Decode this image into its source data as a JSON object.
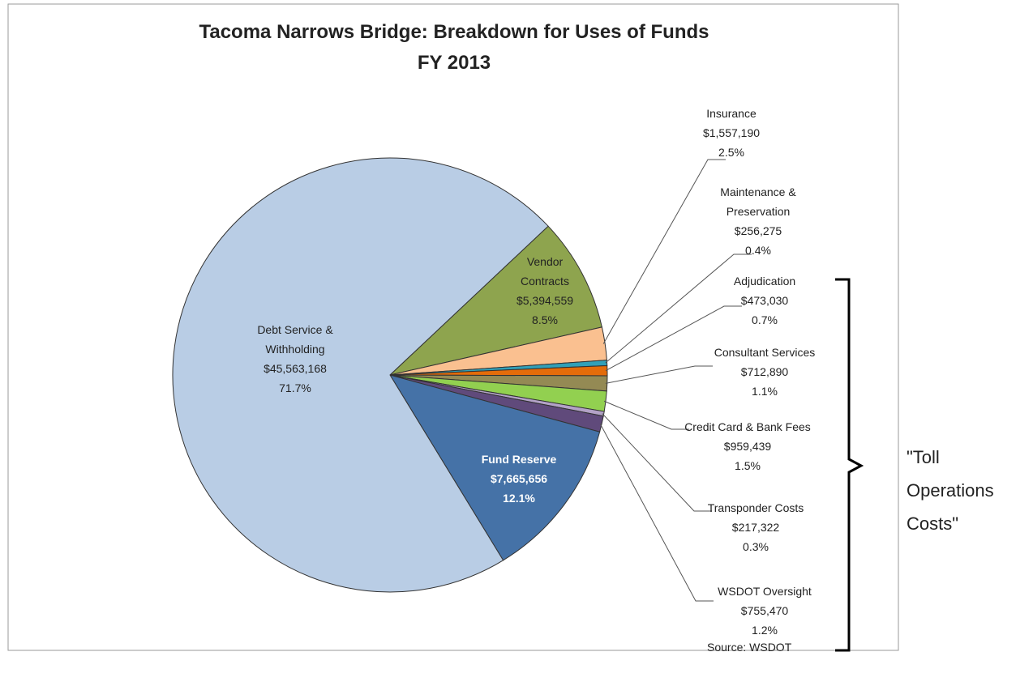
{
  "chart_data": {
    "type": "pie",
    "title": "Tacoma Narrows Bridge: Breakdown for Uses of Funds",
    "subtitle": "FY 2013",
    "categories": [
      "Vendor Contracts",
      "Insurance",
      "Maintenance & Preservation",
      "Adjudication",
      "Consultant Services",
      "Credit Card & Bank Fees",
      "Transponder Costs",
      "WSDOT Oversight",
      "Fund Reserve",
      "Debt Service & Withholding"
    ],
    "values": [
      5394559,
      1557190,
      256275,
      473030,
      712890,
      959439,
      217322,
      755470,
      7665656,
      45563168
    ],
    "value_labels": [
      "$5,394,559",
      "$1,557,190",
      "$256,275",
      "$473,030",
      "$712,890",
      "$959,439",
      "$217,322",
      "$755,470",
      "$7,665,656",
      "$45,563,168"
    ],
    "percent_labels": [
      "8.5%",
      "2.5%",
      "0.4%",
      "0.7%",
      "1.1%",
      "1.5%",
      "0.3%",
      "1.2%",
      "12.1%",
      "71.7%"
    ],
    "colors": [
      "#8ea44e",
      "#fac090",
      "#31a0b8",
      "#e46c0a",
      "#948a54",
      "#92d050",
      "#b3a2c7",
      "#604a7b",
      "#4572a7",
      "#b9cde5"
    ],
    "annotation": "\"Toll Operations Costs\"",
    "source": "Source:  WSDOT"
  }
}
